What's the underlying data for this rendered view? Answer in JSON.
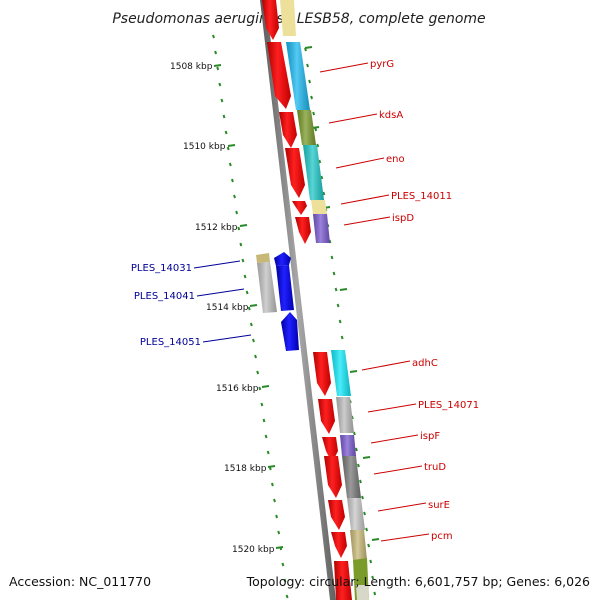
{
  "title": "Pseudomonas aeruginosa LESB58, complete genome",
  "accession": "Accession: NC_011770",
  "summary": "Topology: circular; Length: 6,601,757 bp; Genes: 6,026",
  "kbp_labels": [
    "1508 kbp",
    "1510 kbp",
    "1512 kbp",
    "1514 kbp",
    "1516 kbp",
    "1518 kbp",
    "1520 kbp"
  ],
  "colors": {
    "backbone": "#7a7a7a",
    "tick": "#2a8a2a",
    "forward_cds": "#ff0000",
    "reverse_cds": "#0000ee",
    "forward_label": "#cc0000",
    "reverse_label": "#000099"
  },
  "genes_forward": [
    {
      "name": "pyrG",
      "color": "#1ab8f0"
    },
    {
      "name": "kdsA",
      "color": "#7a9a2a"
    },
    {
      "name": "eno",
      "color": "#20c8c8"
    },
    {
      "name": "PLES_14011",
      "color": "#ece09a"
    },
    {
      "name": "ispD",
      "color": "#7a5ad0"
    },
    {
      "name": "adhC",
      "color": "#10e8f8"
    },
    {
      "name": "PLES_14071",
      "color": "#bcbcbc"
    },
    {
      "name": "ispF",
      "color": "#7a5ad0"
    },
    {
      "name": "truD",
      "color": "#7a7a7a"
    },
    {
      "name": "surE",
      "color": "#c8c8c8"
    },
    {
      "name": "pcm",
      "color": "#c8b878"
    }
  ],
  "genes_reverse": [
    {
      "name": "PLES_14031",
      "color": "#c8b878"
    },
    {
      "name": "PLES_14041",
      "color": "#c0c0c0"
    },
    {
      "name": "PLES_14051",
      "color": "#0000ee"
    }
  ]
}
